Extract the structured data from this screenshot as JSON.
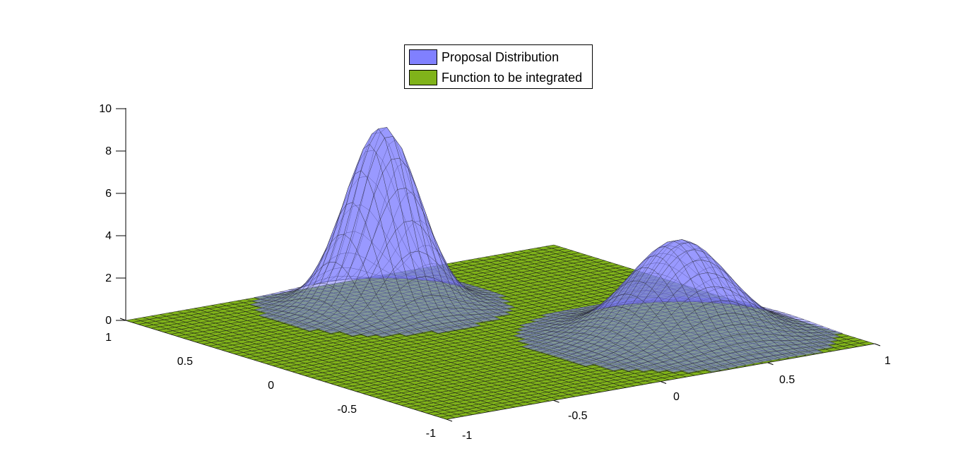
{
  "chart_data": {
    "type": "surface",
    "title": "",
    "legend": {
      "placement": "top-center",
      "entries": [
        {
          "name": "Proposal Distribution",
          "color": "#8080ff"
        },
        {
          "name": "Function to be integrated",
          "color": "#80b31a"
        }
      ]
    },
    "axes": {
      "x": {
        "range": [
          -1,
          1
        ],
        "ticks": [
          -1,
          -0.5,
          0,
          0.5,
          1
        ],
        "tick_labels": [
          "-1",
          "-0.5",
          "0",
          "0.5",
          "1"
        ]
      },
      "y": {
        "range": [
          -1,
          1
        ],
        "ticks": [
          -1,
          -0.5,
          0,
          0.5,
          1
        ],
        "tick_labels": [
          "-1",
          "-0.5",
          "0",
          "0.5",
          "1"
        ]
      },
      "z": {
        "range": [
          0,
          10
        ],
        "ticks": [
          0,
          2,
          4,
          6,
          8,
          10
        ],
        "tick_labels": [
          "0",
          "2",
          "4",
          "6",
          "8",
          "10"
        ]
      }
    },
    "grid": false,
    "surfaces": [
      {
        "name": "Proposal Distribution",
        "color": "#8080ff",
        "peaks": [
          {
            "x": -0.1,
            "y": 0.6,
            "height": 8.5
          },
          {
            "x": 0.5,
            "y": -0.45,
            "height": 4.5
          }
        ]
      },
      {
        "name": "Function to be integrated",
        "color": "#80b31a",
        "description_value": 0
      }
    ],
    "mesh_resolution": 50
  }
}
